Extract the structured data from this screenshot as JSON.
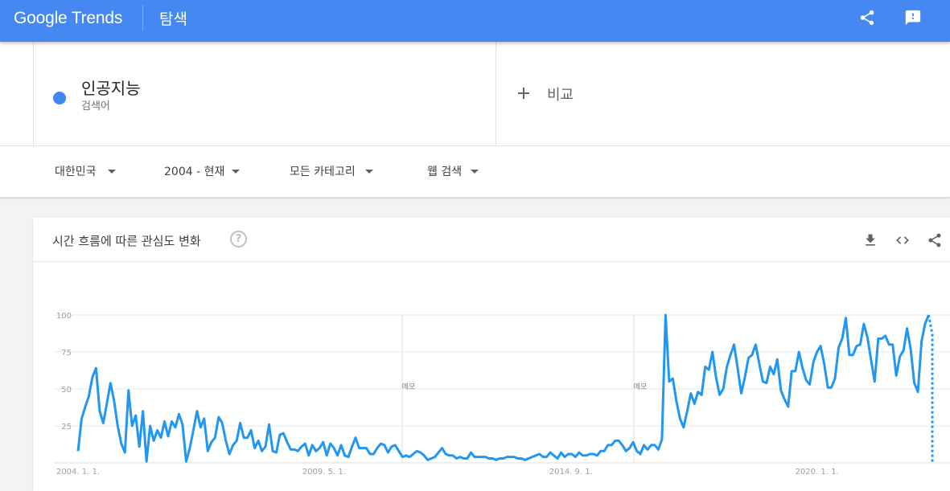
{
  "app": {
    "logo": "Google Trends",
    "page_title": "탐색"
  },
  "search": {
    "term": "인공지능",
    "term_type": "검색어",
    "compare_label": "비교",
    "term_color": "#4285f4"
  },
  "filters": [
    {
      "label": "대한민국"
    },
    {
      "label": "2004 - 현재"
    },
    {
      "label": "모든 카테고리"
    },
    {
      "label": "웹 검색"
    }
  ],
  "card": {
    "title": "시간 흐름에 따른 관심도 변화",
    "help": "?"
  },
  "icons": {
    "share": "share-icon",
    "feedback": "feedback-icon",
    "download": "download-icon",
    "embed": "embed-code-icon",
    "card_share": "share-icon",
    "help": "help-icon"
  },
  "chart_data": {
    "type": "line",
    "series": [
      {
        "values": [
          8,
          30,
          38,
          45,
          58,
          64,
          35,
          27,
          40,
          54,
          42,
          25,
          13,
          7,
          49,
          25,
          32,
          11,
          35,
          1,
          25,
          15,
          22,
          17,
          28,
          18,
          28,
          24,
          33,
          26,
          1,
          10,
          22,
          35,
          24,
          30,
          8,
          14,
          17,
          31,
          27,
          15,
          6,
          12,
          15,
          27,
          17,
          17,
          22,
          10,
          15,
          8,
          11,
          26,
          8,
          7,
          19,
          20,
          14,
          9,
          9,
          8,
          11,
          13,
          5,
          12,
          8,
          10,
          14,
          5,
          13,
          10,
          5,
          12,
          5,
          4,
          11,
          17,
          10,
          10,
          10,
          6,
          6,
          10,
          13,
          12,
          7,
          11,
          12,
          8,
          4,
          5,
          4,
          6,
          8,
          7,
          5,
          2,
          3,
          4,
          7,
          10,
          6,
          5,
          5,
          3,
          4,
          3,
          3,
          7,
          4,
          4,
          4,
          4,
          3,
          3,
          2,
          3,
          3,
          4,
          4,
          4,
          3,
          3,
          2,
          3,
          4,
          5,
          6,
          4,
          4,
          7,
          5,
          3,
          7,
          4,
          6,
          6,
          4,
          7,
          5,
          5,
          6,
          6,
          5,
          8,
          8,
          12,
          12,
          15,
          15,
          12,
          8,
          10,
          14,
          8,
          6,
          12,
          9,
          12,
          12,
          9,
          16,
          100,
          55,
          57,
          42,
          30,
          24,
          35,
          47,
          40,
          48,
          46,
          65,
          63,
          75,
          58,
          46,
          50,
          65,
          73,
          80,
          64,
          47,
          58,
          71,
          73,
          80,
          67,
          55,
          54,
          65,
          60,
          70,
          49,
          43,
          38,
          62,
          62,
          75,
          64,
          56,
          53,
          68,
          75,
          79,
          67,
          51,
          51,
          57,
          78,
          84,
          98,
          73,
          73,
          79,
          80,
          94,
          85,
          70,
          55,
          84,
          84,
          86,
          80,
          80,
          59,
          72,
          76,
          91,
          77,
          54,
          48,
          82,
          94,
          100,
          87
        ],
        "partial_last": true
      }
    ],
    "x_ticks": [
      "2004. 1. 1.",
      "2009. 5. 1.",
      "2014. 9. 1.",
      "2020. 1. 1."
    ],
    "y_ticks": [
      100,
      75,
      50,
      25
    ],
    "ylim": [
      0,
      100
    ],
    "annotations": [
      {
        "text": "메모"
      },
      {
        "text": "메모"
      }
    ],
    "grid": true,
    "line_color": "#2196f3"
  }
}
